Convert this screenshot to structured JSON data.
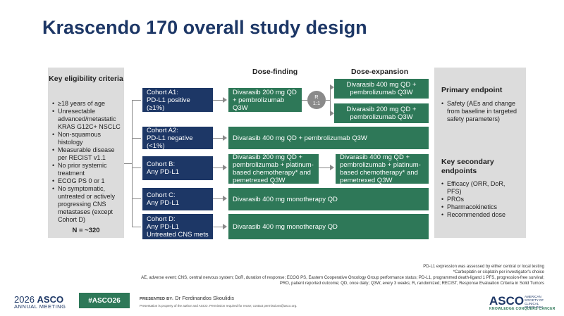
{
  "title": "Krascendo 170 overall study design",
  "phases": {
    "dose_finding": "Dose-finding",
    "dose_expansion": "Dose-expansion"
  },
  "eligibility": {
    "title": "Key eligibility criteria",
    "items": [
      "≥18 years of age",
      "Unresectable advanced/metastatic KRAS G12C+ NSCLC",
      "Non-squamous histology",
      "Measurable disease per RECIST v1.1",
      "No prior systemic treatment",
      "ECOG PS 0 or 1",
      "No symptomatic, untreated or actively progressing CNS metastases (except Cohort D)"
    ],
    "n": "N = ~320"
  },
  "cohorts": {
    "a1": {
      "name": "Cohort A1:",
      "desc": "PD-L1 positive (≥1%)"
    },
    "a2": {
      "name": "Cohort A2:",
      "desc": "PD-L1 negative (<1%)"
    },
    "b": {
      "name": "Cohort B:",
      "desc": "Any PD-L1"
    },
    "c": {
      "name": "Cohort C:",
      "desc": "Any PD-L1"
    },
    "d": {
      "name": "Cohort D:",
      "desc": "Any PD-L1",
      "desc2": "Untreated CNS mets"
    }
  },
  "treatments": {
    "a1_finding": "Divarasib 200 mg QD + pembrolizumab Q3W",
    "a1_exp1": "Divarasib 400 mg QD + pembrolizumab Q3W",
    "a1_exp2": "Divarasib 200 mg QD + pembrolizumab Q3W",
    "a2": "Divarasib 400 mg QD + pembrolizumab Q3W",
    "b_finding": "Divarasib 200 mg QD + pembrolizumab + platinum-based chemotherapy* and pemetrexed Q3W",
    "b_exp": "Divarasib 400 mg QD + pembrolizumab + platinum-based chemotherapy* and pemetrexed Q3W",
    "c": "Divarasib 400 mg monotherapy QD",
    "d": "Divarasib 400 mg monotherapy QD"
  },
  "randomization": {
    "letter": "R",
    "ratio": "1:1"
  },
  "primary": {
    "title": "Primary endpoint",
    "items": [
      "Safety (AEs and change from baseline in targeted safety parameters)"
    ]
  },
  "secondary": {
    "title": "Key secondary endpoints",
    "items": [
      "Efficacy (ORR, DoR, PFS)",
      "PROs",
      "Pharmacokinetics",
      "Recommended dose"
    ]
  },
  "footnotes": {
    "pdl1": "PD-L1 expression was assessed by either central or local testing",
    "chemo": "*Carboplatin or cisplatin per investigator's choice",
    "abbrev": "AE, adverse event; CNS, central nervous system; DoR, duration of response; ECOG PS, Eastern Cooperative Oncology Group performance status; PD-L1, programmed death-ligand 1 PFS, progression-free survival; PRO, patient reported outcome; QD, once daily; Q3W, every 3 weeks; R, randomized; RECIST, Response Evaluation Criteria in Solid Tumors"
  },
  "footer": {
    "year": "2026",
    "org": "ASCO",
    "meeting": "ANNUAL MEETING",
    "hashtag": "#ASCO26",
    "presented_by_label": "PRESENTED BY:",
    "presenter": "Dr Ferdinandos Skoulidis",
    "note": "Presentation is property of the author and ASCO. Permission required for reuse; contact permissions@asco.org.",
    "logo": "ASCO",
    "logo_sub": "AMERICAN SOCIETY OF CLINICAL ONCOLOGY",
    "tagline": "KNOWLEDGE CONQUERS CANCER"
  },
  "colors": {
    "navy": "#1d3766",
    "green": "#2e7858",
    "panel": "#dcdcdc",
    "connector": "#8a8a8a"
  }
}
